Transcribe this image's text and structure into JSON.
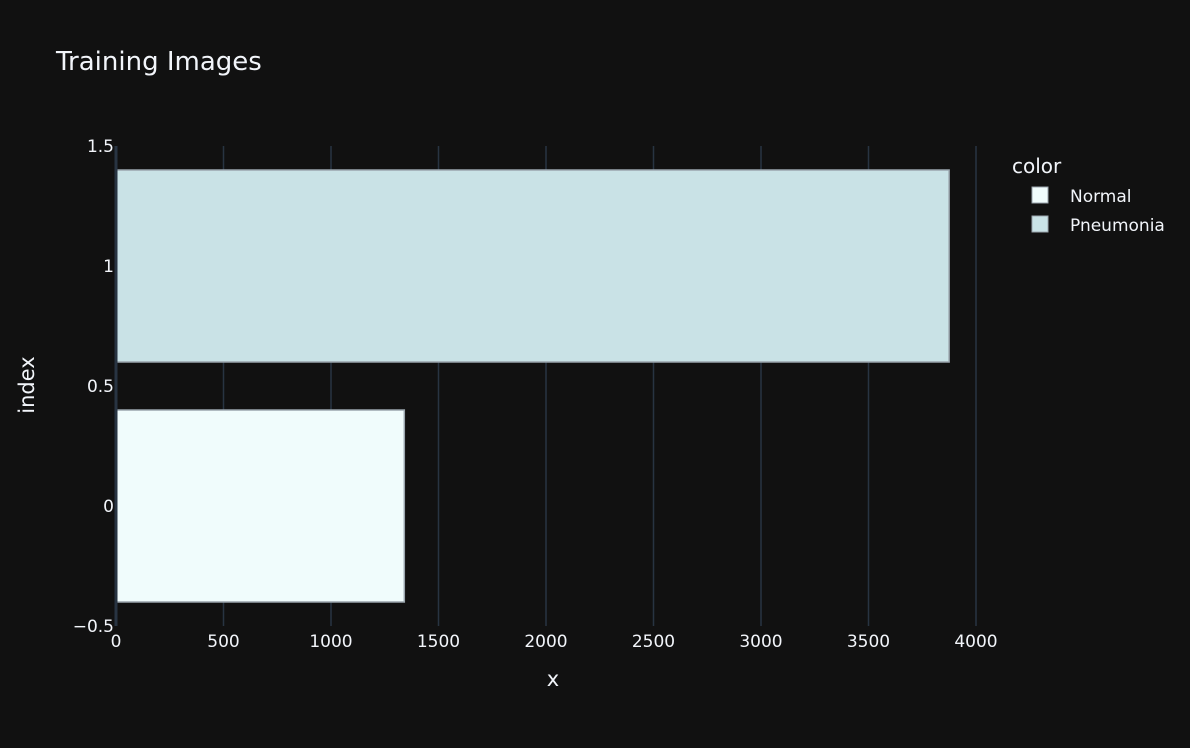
{
  "chart_data": {
    "type": "bar",
    "orientation": "horizontal",
    "title": "Training Images",
    "xlabel": "x",
    "ylabel": "index",
    "xlim": [
      0,
      4200
    ],
    "ylim": [
      -0.5,
      1.5
    ],
    "x_ticks": [
      0,
      500,
      1000,
      1500,
      2000,
      2500,
      3000,
      3500,
      4000
    ],
    "y_ticks": [
      {
        "value": -0.5,
        "label": "−0.5"
      },
      {
        "value": 0,
        "label": "0"
      },
      {
        "value": 0.5,
        "label": "0.5"
      },
      {
        "value": 1,
        "label": "1"
      },
      {
        "value": 1.5,
        "label": "1.5"
      }
    ],
    "grid": true,
    "legend": {
      "title": "color",
      "placement": "top-right",
      "entries": [
        {
          "name": "Normal",
          "color": "#f0fcfc"
        },
        {
          "name": "Pneumonia",
          "color": "#c9e2e6"
        }
      ]
    },
    "series": [
      {
        "name": "Normal",
        "index": 0,
        "value": 1341,
        "color": "#f0fcfc"
      },
      {
        "name": "Pneumonia",
        "index": 1,
        "value": 3875,
        "color": "#c9e2e6"
      }
    ],
    "bar_edge_color": "#9aa5ad",
    "colors": {
      "background": "#111111",
      "grid": "#283442",
      "text": "#f2f5fa"
    }
  }
}
